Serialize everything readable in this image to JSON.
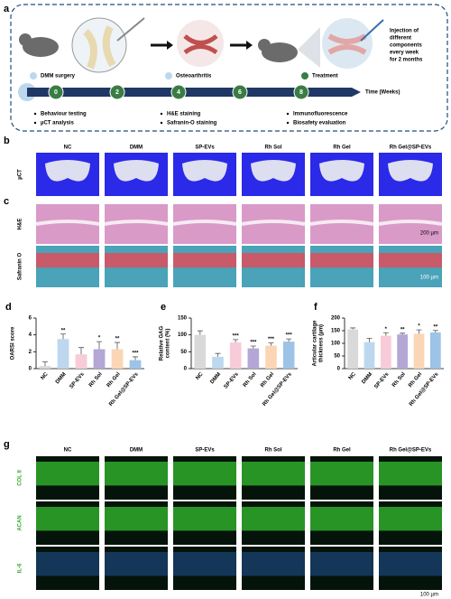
{
  "panel_a": {
    "label": "a",
    "events": [
      "DMM surgery",
      "Osteoarthritis",
      "Treatment"
    ],
    "injection_note": [
      "Injection of",
      "different",
      "components",
      "every week",
      "for 2 months"
    ],
    "timeline": {
      "ticks": [
        0,
        2,
        4,
        6,
        8
      ],
      "axis_label": "Time (Weeks)"
    },
    "assays": [
      "Behaviour testing",
      "µCT analysis",
      "H&E staining",
      "Safranin-O staining",
      "Immunofluorescence",
      "Biosafety evaluation"
    ]
  },
  "panel_b": {
    "label": "b",
    "groups": [
      "NC",
      "DMM",
      "SP-EVs",
      "Rh Sol",
      "Rh Gel",
      "Rh Gel@SP-EVs"
    ],
    "rows": [
      "µCT"
    ]
  },
  "panel_c": {
    "label": "c",
    "rows": [
      "H&E",
      "Safranin O"
    ],
    "scale_bars": [
      "200 µm",
      "100 µm"
    ]
  },
  "panel_g": {
    "label": "g",
    "groups": [
      "NC",
      "DMM",
      "SP-EVs",
      "Rh Sol",
      "Rh Gel",
      "Rh Gel@SP-EVs"
    ],
    "rows": [
      "COL II",
      "ACAN",
      "IL-6"
    ],
    "scale_bar": "100 µm"
  },
  "chart_data": [
    {
      "type": "bar",
      "panel_label": "d",
      "y_label": [
        "OARSI score"
      ],
      "categories": [
        "NC",
        "DMM",
        "SP-EVs",
        "Rh Sol",
        "Rh Gel",
        "Rh Gel@SP-EVs"
      ],
      "values": [
        0.3,
        3.5,
        1.7,
        2.3,
        2.3,
        1.0
      ],
      "errors": [
        0.5,
        0.6,
        0.8,
        0.9,
        0.8,
        0.4
      ],
      "significance": [
        null,
        "**",
        null,
        "*",
        "**",
        "***"
      ],
      "colors": [
        "#d9d9d9",
        "#bdd7ee",
        "#f8cbd8",
        "#b4a7d6",
        "#fbd5b5",
        "#9dc3e6"
      ],
      "ylim": [
        0,
        6
      ],
      "yticks": [
        0,
        2,
        4,
        6
      ]
    },
    {
      "type": "bar",
      "panel_label": "e",
      "y_label": [
        "Relative GAG",
        "content (%)"
      ],
      "categories": [
        "NC",
        "DMM",
        "SP-EVs",
        "Rh Sol",
        "Rh Gel",
        "Rh Gel@SP-EVs"
      ],
      "values": [
        100,
        35,
        78,
        60,
        68,
        80
      ],
      "errors": [
        12,
        10,
        8,
        7,
        8,
        8
      ],
      "significance": [
        null,
        null,
        "***",
        "***",
        "***",
        "***"
      ],
      "colors": [
        "#d9d9d9",
        "#bdd7ee",
        "#f8cbd8",
        "#b4a7d6",
        "#fbd5b5",
        "#9dc3e6"
      ],
      "ylim": [
        0,
        150
      ],
      "yticks": [
        0,
        50,
        100,
        150
      ]
    },
    {
      "type": "bar",
      "panel_label": "f",
      "y_label": [
        "Articular cartilage",
        "thickness (µm)"
      ],
      "categories": [
        "NC",
        "DMM",
        "SP-EVs",
        "Rh Sol",
        "Rh Gel",
        "Rh Gel@SP-EVs"
      ],
      "values": [
        155,
        105,
        130,
        135,
        138,
        143
      ],
      "errors": [
        6,
        15,
        12,
        5,
        15,
        8
      ],
      "significance": [
        null,
        null,
        "*",
        "**",
        "*",
        "**"
      ],
      "colors": [
        "#d9d9d9",
        "#bdd7ee",
        "#f8cbd8",
        "#b4a7d6",
        "#fbd5b5",
        "#9dc3e6"
      ],
      "ylim": [
        0,
        200
      ],
      "yticks": [
        0,
        50,
        100,
        150,
        200
      ]
    }
  ]
}
